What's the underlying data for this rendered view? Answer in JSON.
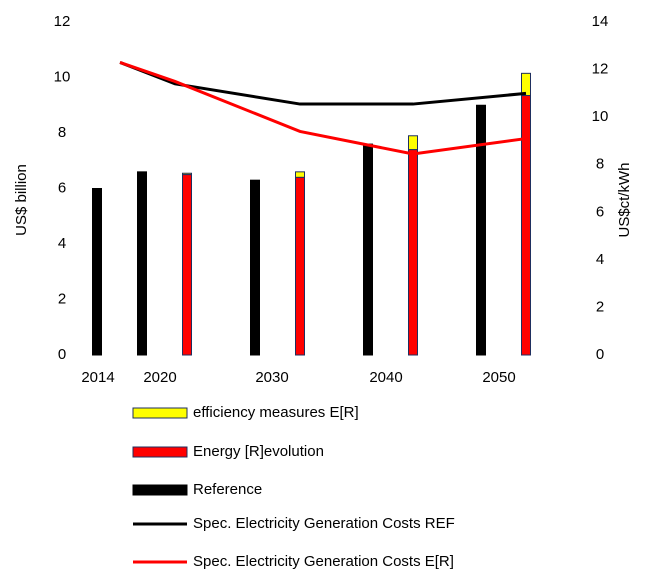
{
  "chart_data": {
    "type": "bar",
    "categories": [
      "2014",
      "2020",
      "2030",
      "2040",
      "2050"
    ],
    "y_label": "US$ billion",
    "y2_label": "US$ct/kWh",
    "ylim": [
      0,
      12
    ],
    "yticks": [
      0,
      2,
      4,
      6,
      8,
      10,
      12
    ],
    "y2lim": [
      0,
      14
    ],
    "y2ticks": [
      0,
      2,
      4,
      6,
      8,
      10,
      12,
      14
    ],
    "series": [
      {
        "name": "efficiency measures E[R]",
        "type": "bar",
        "color": "#ffff00",
        "stacked_on": "Energy [R]evolution",
        "values": [
          null,
          0.05,
          0.2,
          0.5,
          0.8
        ]
      },
      {
        "name": "Energy [R]evolution",
        "type": "bar",
        "color": "#ff0000",
        "values": [
          null,
          6.5,
          6.4,
          7.4,
          9.35
        ]
      },
      {
        "name": "Reference",
        "type": "bar",
        "color": "#000000",
        "values": [
          6.0,
          6.6,
          6.3,
          7.6,
          9.0
        ]
      },
      {
        "name": "Spec. Electricity Generation Costs REF",
        "type": "line",
        "axis": "y2",
        "color": "#000000",
        "values": [
          12.3,
          11.4,
          10.55,
          10.55,
          11.0
        ]
      },
      {
        "name": "Spec. Electricity Generation Costs E[R]",
        "type": "line",
        "axis": "y2",
        "color": "#ff0000",
        "values": [
          12.3,
          11.5,
          9.4,
          8.45,
          9.1
        ]
      }
    ]
  }
}
